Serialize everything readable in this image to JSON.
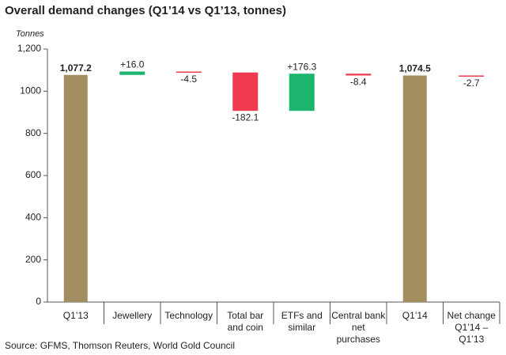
{
  "chart_data": {
    "type": "waterfall",
    "title": "Overall demand changes (Q1’14 vs Q1’13, tonnes)",
    "y_label": "Tonnes",
    "source": "Source: GFMS, Thomson Reuters, World Gold Council",
    "categories": [
      "Q1’13",
      "Jewellery",
      "Technology",
      "Total bar\nand coin",
      "ETFs and\nsimilar",
      "Central bank\nnet purchases",
      "Q1’14",
      "Net change\nQ1’14 – Q1’13"
    ],
    "measures": [
      "absolute",
      "relative",
      "relative",
      "relative",
      "relative",
      "relative",
      "absolute",
      "relative"
    ],
    "values": [
      1077.2,
      16.0,
      -4.5,
      -182.1,
      176.3,
      -8.4,
      1074.5,
      -2.7
    ],
    "value_labels": [
      "1,077.2",
      "+16.0",
      "-4.5",
      "-182.1",
      "+176.3",
      "-8.4",
      "1,074.5",
      "-2.7"
    ],
    "colors": {
      "absolute": "#a38e60",
      "increase": "#1db46e",
      "decrease": "#ef3a4f"
    },
    "ylim": [
      0,
      1200
    ],
    "yticks": [
      0,
      200,
      400,
      600,
      800,
      1000,
      {
        "value": 1200,
        "label": "1,200"
      }
    ]
  }
}
